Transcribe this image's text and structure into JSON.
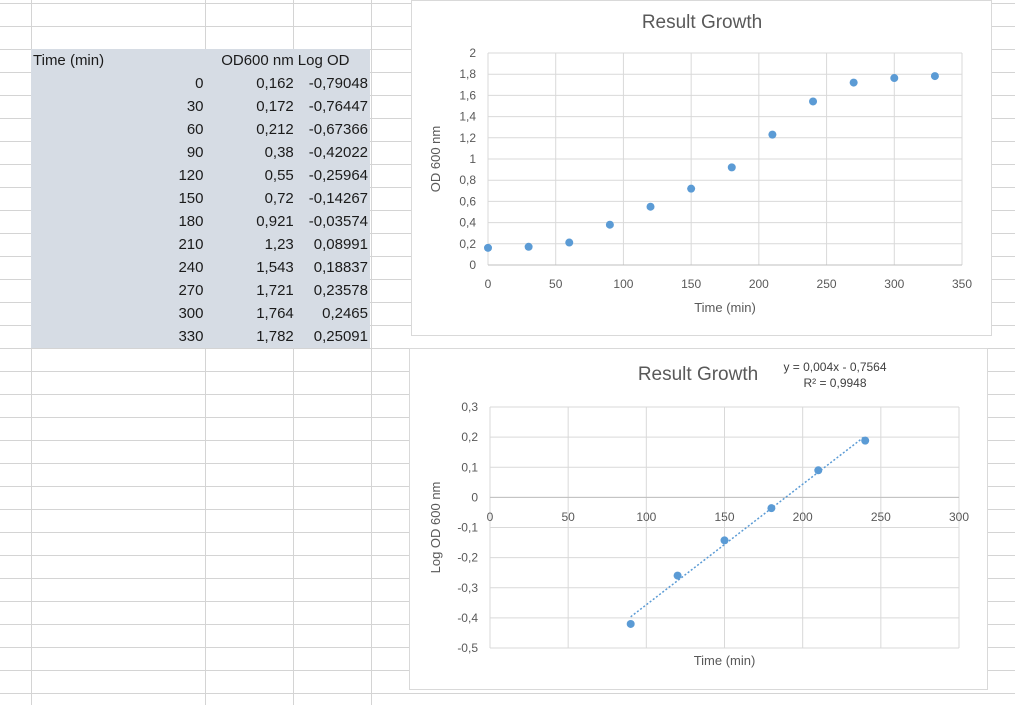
{
  "sheet": {
    "headers": [
      "Time (min)",
      "OD600 nm",
      "Log OD"
    ],
    "rows": [
      [
        "0",
        "0,162",
        "-0,79048"
      ],
      [
        "30",
        "0,172",
        "-0,76447"
      ],
      [
        "60",
        "0,212",
        "-0,67366"
      ],
      [
        "90",
        "0,38",
        "-0,42022"
      ],
      [
        "120",
        "0,55",
        "-0,25964"
      ],
      [
        "150",
        "0,72",
        "-0,14267"
      ],
      [
        "180",
        "0,921",
        "-0,03574"
      ],
      [
        "210",
        "1,23",
        "0,08991"
      ],
      [
        "240",
        "1,543",
        "0,18837"
      ],
      [
        "270",
        "1,721",
        "0,23578"
      ],
      [
        "300",
        "1,764",
        "0,2465"
      ],
      [
        "330",
        "1,782",
        "0,25091"
      ]
    ]
  },
  "colors": {
    "marker": "#5b9bd5",
    "table_fill": "#d6dce4",
    "gridline": "#d9d9d9"
  },
  "chart_data": [
    {
      "type": "scatter",
      "title": "Result Growth",
      "xlabel": "Time (min)",
      "ylabel": "OD 600 nm",
      "xlim": [
        0,
        350
      ],
      "ylim": [
        0,
        2
      ],
      "x_ticks": [
        "0",
        "50",
        "100",
        "150",
        "200",
        "250",
        "300",
        "350"
      ],
      "y_ticks": [
        "0",
        "0,2",
        "0,4",
        "0,6",
        "0,8",
        "1",
        "1,2",
        "1,4",
        "1,6",
        "1,8",
        "2"
      ],
      "grid": true,
      "series": [
        {
          "x": [
            0,
            30,
            60,
            90,
            120,
            150,
            180,
            210,
            240,
            270,
            300,
            330
          ],
          "y": [
            0.162,
            0.172,
            0.212,
            0.38,
            0.55,
            0.72,
            0.921,
            1.23,
            1.543,
            1.721,
            1.764,
            1.782
          ]
        }
      ]
    },
    {
      "type": "scatter",
      "title": "Result Growth",
      "xlabel": "Time (min)",
      "ylabel": "Log OD 600 nm",
      "xlim": [
        0,
        300
      ],
      "ylim": [
        -0.5,
        0.3
      ],
      "x_ticks": [
        "0",
        "50",
        "100",
        "150",
        "200",
        "250",
        "300"
      ],
      "y_ticks": [
        "-0,5",
        "-0,4",
        "-0,3",
        "-0,2",
        "-0,1",
        "0",
        "0,1",
        "0,2",
        "0,3"
      ],
      "grid": true,
      "trendline": {
        "style": "dotted linear",
        "slope": 0.004,
        "intercept": -0.7564,
        "equation": "y = 0,004x - 0,7564",
        "r_squared": "R² = 0,9948"
      },
      "series": [
        {
          "x": [
            90,
            120,
            150,
            180,
            210,
            240
          ],
          "y": [
            -0.42022,
            -0.25964,
            -0.14267,
            -0.03574,
            0.08991,
            0.18837
          ]
        }
      ]
    }
  ]
}
